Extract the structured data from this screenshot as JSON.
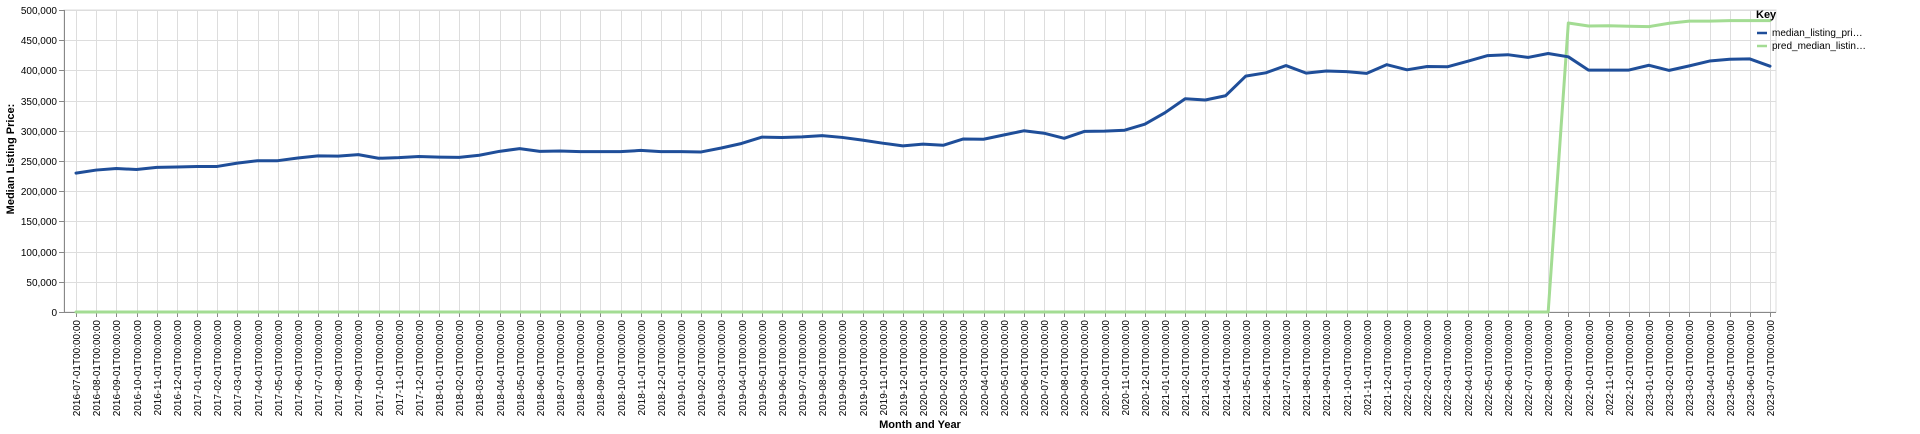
{
  "chart_data": {
    "type": "line",
    "xlabel": "Month and Year",
    "ylabel": "Median Listing Price:",
    "ylim": [
      0,
      500000
    ],
    "y_ticks": [
      "0",
      "50,000",
      "100,000",
      "150,000",
      "200,000",
      "250,000",
      "300,000",
      "350,000",
      "400,000",
      "450,000",
      "500,000"
    ],
    "grid": true,
    "legend": {
      "title": "Key",
      "position": "right",
      "entries": [
        {
          "label": "median_listing_pri…",
          "color": "#1f4e99"
        },
        {
          "label": "pred_median_listin…",
          "color": "#a3dc93"
        }
      ]
    },
    "x": [
      "2016-07-01T00:00:00",
      "2016-08-01T00:00:00",
      "2016-09-01T00:00:00",
      "2016-10-01T00:00:00",
      "2016-11-01T00:00:00",
      "2016-12-01T00:00:00",
      "2017-01-01T00:00:00",
      "2017-02-01T00:00:00",
      "2017-03-01T00:00:00",
      "2017-04-01T00:00:00",
      "2017-05-01T00:00:00",
      "2017-06-01T00:00:00",
      "2017-07-01T00:00:00",
      "2017-08-01T00:00:00",
      "2017-09-01T00:00:00",
      "2017-10-01T00:00:00",
      "2017-11-01T00:00:00",
      "2017-12-01T00:00:00",
      "2018-01-01T00:00:00",
      "2018-02-01T00:00:00",
      "2018-03-01T00:00:00",
      "2018-04-01T00:00:00",
      "2018-05-01T00:00:00",
      "2018-06-01T00:00:00",
      "2018-07-01T00:00:00",
      "2018-08-01T00:00:00",
      "2018-09-01T00:00:00",
      "2018-10-01T00:00:00",
      "2018-11-01T00:00:00",
      "2018-12-01T00:00:00",
      "2019-01-01T00:00:00",
      "2019-02-01T00:00:00",
      "2019-03-01T00:00:00",
      "2019-04-01T00:00:00",
      "2019-05-01T00:00:00",
      "2019-06-01T00:00:00",
      "2019-07-01T00:00:00",
      "2019-08-01T00:00:00",
      "2019-09-01T00:00:00",
      "2019-10-01T00:00:00",
      "2019-11-01T00:00:00",
      "2019-12-01T00:00:00",
      "2020-01-01T00:00:00",
      "2020-02-01T00:00:00",
      "2020-03-01T00:00:00",
      "2020-04-01T00:00:00",
      "2020-05-01T00:00:00",
      "2020-06-01T00:00:00",
      "2020-07-01T00:00:00",
      "2020-08-01T00:00:00",
      "2020-09-01T00:00:00",
      "2020-10-01T00:00:00",
      "2020-11-01T00:00:00",
      "2020-12-01T00:00:00",
      "2021-01-01T00:00:00",
      "2021-02-01T00:00:00",
      "2021-03-01T00:00:00",
      "2021-04-01T00:00:00",
      "2021-05-01T00:00:00",
      "2021-06-01T00:00:00",
      "2021-07-01T00:00:00",
      "2021-08-01T00:00:00",
      "2021-09-01T00:00:00",
      "2021-10-01T00:00:00",
      "2021-11-01T00:00:00",
      "2021-12-01T00:00:00",
      "2022-01-01T00:00:00",
      "2022-02-01T00:00:00",
      "2022-03-01T00:00:00",
      "2022-04-01T00:00:00",
      "2022-05-01T00:00:00",
      "2022-06-01T00:00:00",
      "2022-07-01T00:00:00",
      "2022-08-01T00:00:00",
      "2022-09-01T00:00:00",
      "2022-10-01T00:00:00",
      "2022-11-01T00:00:00",
      "2022-12-01T00:00:00",
      "2023-01-01T00:00:00",
      "2023-02-01T00:00:00",
      "2023-03-01T00:00:00",
      "2023-04-01T00:00:00",
      "2023-05-01T00:00:00",
      "2023-06-01T00:00:00",
      "2023-07-01T00:00:00"
    ],
    "series": [
      {
        "name": "median_listing_pri…",
        "color": "#1f4e99",
        "values": [
          230000,
          235000,
          237500,
          236000,
          239500,
          240000,
          241000,
          241000,
          246500,
          250500,
          250500,
          255000,
          258500,
          258000,
          260500,
          254500,
          255500,
          257500,
          256500,
          256000,
          259500,
          266000,
          270500,
          266000,
          266500,
          265500,
          265500,
          265500,
          267500,
          265500,
          265500,
          265000,
          271500,
          279000,
          289500,
          289000,
          290000,
          292000,
          289000,
          284500,
          279500,
          275000,
          278000,
          276000,
          286500,
          286000,
          293000,
          300000,
          296000,
          287500,
          299000,
          299500,
          301000,
          311000,
          330000,
          353000,
          351000,
          358000,
          390500,
          396000,
          408000,
          395500,
          399000,
          398000,
          395000,
          409500,
          401000,
          406500,
          406000,
          415000,
          424500,
          426000,
          421500,
          428000,
          422500,
          400500,
          400500,
          400500,
          408500,
          400000,
          407500,
          415500,
          418500,
          419000,
          407000
        ]
      },
      {
        "name": "pred_median_listin…",
        "color": "#a3dc93",
        "values": [
          0,
          0,
          0,
          0,
          0,
          0,
          0,
          0,
          0,
          0,
          0,
          0,
          0,
          0,
          0,
          0,
          0,
          0,
          0,
          0,
          0,
          0,
          0,
          0,
          0,
          0,
          0,
          0,
          0,
          0,
          0,
          0,
          0,
          0,
          0,
          0,
          0,
          0,
          0,
          0,
          0,
          0,
          0,
          0,
          0,
          0,
          0,
          0,
          0,
          0,
          0,
          0,
          0,
          0,
          0,
          0,
          0,
          0,
          0,
          0,
          0,
          0,
          0,
          0,
          0,
          0,
          0,
          0,
          0,
          0,
          0,
          0,
          0,
          0,
          478500,
          473500,
          474000,
          473000,
          472500,
          478000,
          481500,
          481500,
          482500,
          482500,
          482500
        ]
      }
    ]
  }
}
